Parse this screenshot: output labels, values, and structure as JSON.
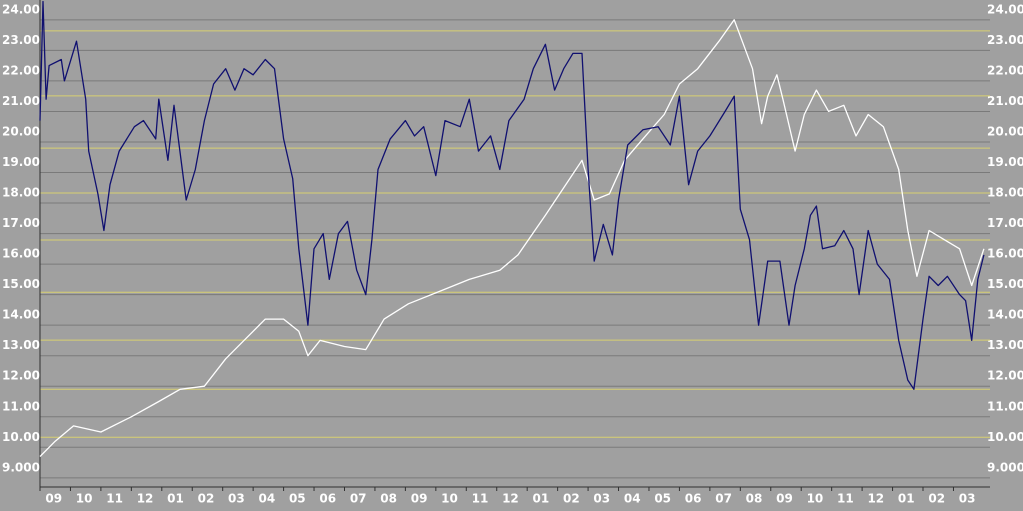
{
  "chart_data": {
    "type": "line",
    "categories": [
      "09",
      "10",
      "11",
      "12",
      "01",
      "02",
      "03",
      "04",
      "05",
      "06",
      "07",
      "08",
      "09",
      "10",
      "11",
      "12",
      "01",
      "02",
      "03",
      "04",
      "05",
      "06",
      "07",
      "08",
      "09",
      "10",
      "11",
      "12",
      "01",
      "02",
      "03"
    ],
    "xlim": [
      0,
      31.2
    ],
    "ylim": [
      8.7,
      24.65
    ],
    "yticks": [
      {
        "value": 9,
        "label": "9.000"
      },
      {
        "value": 10,
        "label": "10.00"
      },
      {
        "value": 11,
        "label": "11.00"
      },
      {
        "value": 12,
        "label": "12.00"
      },
      {
        "value": 13,
        "label": "13.00"
      },
      {
        "value": 14,
        "label": "14.00"
      },
      {
        "value": 15,
        "label": "15.00"
      },
      {
        "value": 16,
        "label": "16.00"
      },
      {
        "value": 17,
        "label": "17.00"
      },
      {
        "value": 18,
        "label": "18.00"
      },
      {
        "value": 19,
        "label": "19.00"
      },
      {
        "value": 20,
        "label": "20.00"
      },
      {
        "value": 21,
        "label": "21.00"
      },
      {
        "value": 22,
        "label": "22.00"
      },
      {
        "value": 23,
        "label": "23.00"
      },
      {
        "value": 24,
        "label": "24.00"
      }
    ],
    "grid": true,
    "reference_lines": {
      "color": "#d8d070",
      "values": [
        23.64,
        21.51,
        19.8,
        18.33,
        16.79,
        15.08,
        13.51,
        11.9,
        10.33
      ]
    },
    "series": [
      {
        "color": "#ffffff",
        "x": [
          0,
          0.5,
          1.1,
          2.0,
          3.0,
          3.9,
          4.6,
          5.4,
          6.1,
          6.7,
          7.4,
          8.0,
          8.5,
          8.8,
          9.2,
          10.0,
          10.7,
          11.3,
          12.1,
          13.1,
          14.1,
          15.1,
          15.7,
          16.6,
          17.4,
          17.8,
          18.2,
          18.7,
          19.2,
          19.8,
          20.5,
          21.0,
          21.6,
          22.3,
          22.8,
          23.1,
          23.4,
          23.7,
          23.9,
          24.2,
          24.4,
          24.8,
          25.1,
          25.5,
          25.9,
          26.4,
          26.8,
          27.2,
          27.7,
          28.2,
          28.5,
          28.8,
          29.2,
          29.7,
          30.2,
          30.6,
          31.0
        ],
        "values": [
          9.7,
          10.2,
          10.7,
          10.5,
          11.0,
          11.5,
          11.9,
          12.0,
          12.9,
          13.5,
          14.2,
          14.2,
          13.8,
          13.0,
          13.5,
          13.3,
          13.2,
          14.2,
          14.7,
          15.1,
          15.5,
          15.8,
          16.3,
          17.6,
          18.8,
          19.4,
          18.1,
          18.3,
          19.4,
          20.1,
          20.9,
          21.9,
          22.4,
          23.3,
          24.0,
          23.2,
          22.4,
          20.6,
          21.5,
          22.2,
          21.4,
          19.7,
          20.9,
          21.7,
          21.0,
          21.2,
          20.2,
          20.9,
          20.5,
          19.1,
          17.1,
          15.6,
          17.1,
          16.8,
          16.5,
          15.3,
          16.5
        ]
      },
      {
        "color": "#101070",
        "x": [
          0,
          0.1,
          0.2,
          0.3,
          0.7,
          0.8,
          1.2,
          1.5,
          1.6,
          1.9,
          2.1,
          2.3,
          2.6,
          3.1,
          3.4,
          3.8,
          3.9,
          4.2,
          4.4,
          4.8,
          5.1,
          5.4,
          5.7,
          6.1,
          6.4,
          6.7,
          7.0,
          7.4,
          7.7,
          8.0,
          8.3,
          8.5,
          8.8,
          9.0,
          9.3,
          9.5,
          9.8,
          10.1,
          10.4,
          10.7,
          10.9,
          11.1,
          11.5,
          12.0,
          12.3,
          12.6,
          13.0,
          13.3,
          13.8,
          14.1,
          14.4,
          14.8,
          15.1,
          15.4,
          15.9,
          16.2,
          16.6,
          16.9,
          17.2,
          17.5,
          17.8,
          18.0,
          18.2,
          18.5,
          18.8,
          19.0,
          19.3,
          19.8,
          20.3,
          20.7,
          21.0,
          21.3,
          21.6,
          22.0,
          22.5,
          22.8,
          23.0,
          23.3,
          23.6,
          23.9,
          24.3,
          24.6,
          24.8,
          25.1,
          25.3,
          25.5,
          25.7,
          26.1,
          26.4,
          26.7,
          26.9,
          27.2,
          27.5,
          27.9,
          28.2,
          28.5,
          28.7,
          29.0,
          29.2,
          29.5,
          29.8,
          30.2,
          30.4,
          30.6,
          30.8,
          31.0
        ],
        "values": [
          20.7,
          24.6,
          21.4,
          22.5,
          22.7,
          22.0,
          23.3,
          21.4,
          19.7,
          18.3,
          17.1,
          18.6,
          19.7,
          20.5,
          20.7,
          20.1,
          21.4,
          19.4,
          21.2,
          18.1,
          19.1,
          20.7,
          21.9,
          22.4,
          21.7,
          22.4,
          22.2,
          22.7,
          22.4,
          20.1,
          18.8,
          16.5,
          14.0,
          16.5,
          17.0,
          15.5,
          17.0,
          17.4,
          15.8,
          15.0,
          16.8,
          19.1,
          20.1,
          20.7,
          20.2,
          20.5,
          18.9,
          20.7,
          20.5,
          21.4,
          19.7,
          20.2,
          19.1,
          20.7,
          21.4,
          22.4,
          23.2,
          21.7,
          22.4,
          22.9,
          22.9,
          19.1,
          16.1,
          17.3,
          16.3,
          18.1,
          19.9,
          20.4,
          20.5,
          19.9,
          21.5,
          18.6,
          19.7,
          20.2,
          21.0,
          21.5,
          17.8,
          16.8,
          14.0,
          16.1,
          16.1,
          14.0,
          15.3,
          16.5,
          17.6,
          17.9,
          16.5,
          16.6,
          17.1,
          16.5,
          15.0,
          17.1,
          16.0,
          15.5,
          13.5,
          12.2,
          11.9,
          14.2,
          15.6,
          15.3,
          15.6,
          15.0,
          14.8,
          13.5,
          15.5,
          16.3
        ]
      }
    ]
  }
}
